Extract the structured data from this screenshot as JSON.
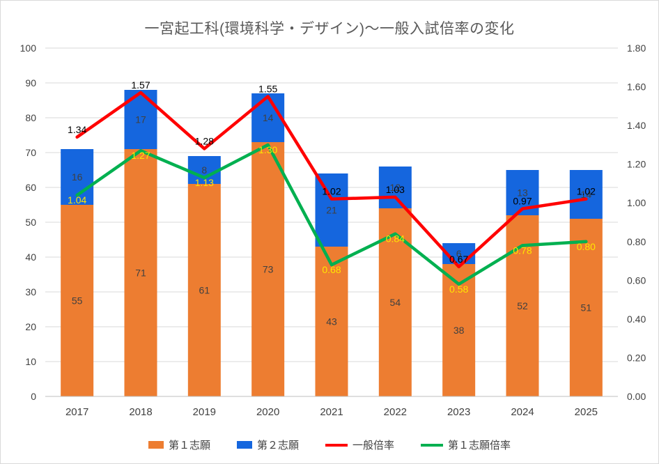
{
  "chart_data": {
    "type": "bar",
    "subtype": "stacked-bars-with-dual-axis-lines",
    "title": "一宮起工科(環境科学・デザイン)～一般入試倍率の変化",
    "categories": [
      "2017",
      "2018",
      "2019",
      "2020",
      "2021",
      "2022",
      "2023",
      "2024",
      "2025"
    ],
    "bar_series": [
      {
        "name": "第１志願",
        "color": "#ED7D31",
        "axis": "left",
        "values": [
          55,
          71,
          61,
          73,
          43,
          54,
          38,
          52,
          51
        ]
      },
      {
        "name": "第２志願",
        "color": "#1566DE",
        "axis": "left",
        "values": [
          16,
          17,
          8,
          14,
          21,
          12,
          6,
          13,
          14
        ]
      }
    ],
    "line_series": [
      {
        "name": "一般倍率",
        "color": "#FF0000",
        "axis": "right",
        "label_color": "#000000",
        "values": [
          1.34,
          1.57,
          1.28,
          1.55,
          1.02,
          1.03,
          0.67,
          0.97,
          1.02
        ]
      },
      {
        "name": "第１志願倍率",
        "color": "#00B050",
        "axis": "right",
        "label_color": "#FFE600",
        "values": [
          1.04,
          1.27,
          1.13,
          1.3,
          0.68,
          0.84,
          0.58,
          0.78,
          0.8
        ]
      }
    ],
    "left_axis": {
      "min": 0,
      "max": 100,
      "step": 10,
      "ticks": [
        "0",
        "10",
        "20",
        "30",
        "40",
        "50",
        "60",
        "70",
        "80",
        "90",
        "100"
      ]
    },
    "right_axis": {
      "min": 0,
      "max": 1.8,
      "step": 0.2,
      "ticks": [
        "0.00",
        "0.20",
        "0.40",
        "0.60",
        "0.80",
        "1.00",
        "1.20",
        "1.40",
        "1.60",
        "1.80"
      ]
    },
    "grid": true,
    "legend_position": "bottom"
  },
  "colors": {
    "title_text": "#595959",
    "axis_text": "#404040",
    "gridline": "#D9D9D9",
    "axis_line": "#BFBFBF",
    "bar_label": "#404040",
    "background": "#FFFFFF",
    "border": "#D9D9D9"
  }
}
